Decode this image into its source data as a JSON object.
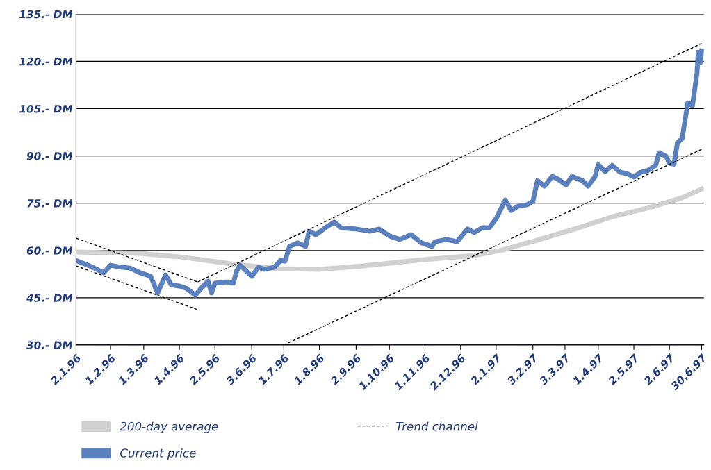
{
  "chart_data": {
    "type": "line",
    "xlim": [
      "1996-01-02",
      "1997-07-02"
    ],
    "ylim": [
      30,
      135
    ],
    "xticks": [
      {
        "value": "1996-01-02",
        "label": "2.1.96"
      },
      {
        "value": "1996-02-01",
        "label": "1.2.96"
      },
      {
        "value": "1996-03-01",
        "label": "1.3.96"
      },
      {
        "value": "1996-04-01",
        "label": "1.4.96"
      },
      {
        "value": "1996-05-02",
        "label": "2.5.96"
      },
      {
        "value": "1996-06-03",
        "label": "3.6.96"
      },
      {
        "value": "1996-07-01",
        "label": "1.7.96"
      },
      {
        "value": "1996-08-01",
        "label": "1.8.96"
      },
      {
        "value": "1996-09-02",
        "label": "2.9.96"
      },
      {
        "value": "1996-10-01",
        "label": "1.10.96"
      },
      {
        "value": "1996-11-01",
        "label": "1.11.96"
      },
      {
        "value": "1996-12-02",
        "label": "2.12.96"
      },
      {
        "value": "1997-01-02",
        "label": "2.1.97"
      },
      {
        "value": "1997-02-03",
        "label": "3.2.97"
      },
      {
        "value": "1997-03-03",
        "label": "3.3.97"
      },
      {
        "value": "1997-04-01",
        "label": "1.4.97"
      },
      {
        "value": "1997-05-02",
        "label": "2.5.97"
      },
      {
        "value": "1997-06-02",
        "label": "2.6.97"
      },
      {
        "value": "1997-06-30",
        "label": "30.6.97"
      }
    ],
    "yticks": [
      {
        "value": 30,
        "label": "30.- DM"
      },
      {
        "value": 45,
        "label": "45.- DM"
      },
      {
        "value": 60,
        "label": "60.- DM"
      },
      {
        "value": 75,
        "label": "75.- DM"
      },
      {
        "value": 90,
        "label": "90.- DM"
      },
      {
        "value": 105,
        "label": "105.- DM"
      },
      {
        "value": 120,
        "label": "120.- DM"
      },
      {
        "value": 135,
        "label": "135.- DM"
      }
    ],
    "grid": "y",
    "legend": "bottom",
    "marker": "none",
    "series": [
      {
        "name": "200-day average",
        "color": "#d0d0d0",
        "line_style": "solid",
        "x": [
          "1996-01-02",
          "1996-02-24",
          "1996-04-01",
          "1996-05-15",
          "1996-06-25",
          "1996-08-01",
          "1996-09-08",
          "1996-10-26",
          "1996-12-14",
          "1997-01-08",
          "1997-02-09",
          "1997-03-15",
          "1997-04-13",
          "1997-05-14",
          "1997-06-13",
          "1997-06-30"
        ],
        "values": [
          59.5,
          59.1,
          58,
          55.8,
          54.2,
          54,
          55.1,
          56.9,
          58.4,
          60.2,
          63.5,
          67.2,
          70.7,
          73.4,
          76.7,
          79.5
        ]
      },
      {
        "name": "Current price",
        "color": "#5b80be",
        "line_style": "solid",
        "x": [
          "1996-01-02",
          "1996-01-14",
          "1996-01-26",
          "1996-02-01",
          "1996-02-10",
          "1996-02-18",
          "1996-02-27",
          "1996-03-07",
          "1996-03-13",
          "1996-03-20",
          "1996-03-25",
          "1996-04-01",
          "1996-04-07",
          "1996-04-15",
          "1996-04-20",
          "1996-04-26",
          "1996-04-29",
          "1996-05-02",
          "1996-05-12",
          "1996-05-18",
          "1996-05-21",
          "1996-05-24",
          "1996-06-03",
          "1996-06-09",
          "1996-06-14",
          "1996-06-23",
          "1996-06-28",
          "1996-07-02",
          "1996-07-06",
          "1996-07-13",
          "1996-07-20",
          "1996-07-23",
          "1996-07-29",
          "1996-08-07",
          "1996-08-14",
          "1996-08-20",
          "1996-09-02",
          "1996-09-14",
          "1996-09-22",
          "1996-10-01",
          "1996-10-10",
          "1996-10-20",
          "1996-10-29",
          "1996-11-07",
          "1996-11-10",
          "1996-11-20",
          "1996-11-29",
          "1996-12-08",
          "1996-12-14",
          "1996-12-21",
          "1996-12-27",
          "1997-01-02",
          "1997-01-10",
          "1997-01-15",
          "1997-01-21",
          "1997-01-29",
          "1997-02-03",
          "1997-02-07",
          "1997-02-13",
          "1997-02-20",
          "1997-02-25",
          "1997-03-04",
          "1997-03-09",
          "1997-03-18",
          "1997-03-23",
          "1997-03-29",
          "1997-04-01",
          "1997-04-07",
          "1997-04-13",
          "1997-04-20",
          "1997-04-26",
          "1997-05-02",
          "1997-05-08",
          "1997-05-14",
          "1997-05-21",
          "1997-05-24",
          "1997-05-30",
          "1997-06-02",
          "1997-06-06",
          "1997-06-09",
          "1997-06-13",
          "1997-06-18",
          "1997-06-22",
          "1997-06-26",
          "1997-06-27",
          "1997-06-29",
          "1997-06-30"
        ],
        "values": [
          56.8,
          55.1,
          52.9,
          55.3,
          54.7,
          54.4,
          52.9,
          51.8,
          46.5,
          52.2,
          49.1,
          48.7,
          48,
          45.8,
          48,
          50.2,
          46.5,
          49.6,
          50,
          49.6,
          53.6,
          55.3,
          51.8,
          54.7,
          54,
          54.7,
          56.8,
          56.6,
          61.3,
          62.4,
          61.3,
          66.1,
          65,
          67.4,
          69,
          67.2,
          66.8,
          66.1,
          66.8,
          64.6,
          63.5,
          65,
          62.4,
          61.3,
          62.8,
          63.5,
          62.8,
          66.8,
          65.7,
          67.2,
          67.2,
          70.1,
          76,
          72.7,
          74,
          74.5,
          75.6,
          82.2,
          80.4,
          83.5,
          82.6,
          80.8,
          83.5,
          82.2,
          80.4,
          83.3,
          87.2,
          85,
          87,
          84.8,
          84.4,
          83.3,
          84.8,
          85.3,
          87,
          91,
          89.9,
          87.7,
          87.4,
          94.3,
          95.4,
          106.8,
          105.9,
          116.3,
          122.9,
          119.6,
          123.3
        ]
      },
      {
        "name": "Trend channel",
        "color": "#000000",
        "line_style": "dashed",
        "x": [
          "1996-01-02",
          "1996-04-17"
        ],
        "values": [
          63.9,
          50
        ]
      },
      {
        "color": "#000000",
        "line_style": "dashed",
        "x": [
          "1996-01-02",
          "1996-04-17"
        ],
        "values": [
          55.1,
          41.2
        ]
      },
      {
        "color": "#000000",
        "line_style": "dashed",
        "x": [
          "1996-04-17",
          "1997-06-30"
        ],
        "values": [
          50,
          125.7
        ]
      },
      {
        "color": "#000000",
        "line_style": "dashed",
        "x": [
          "1996-07-01",
          "1997-06-30"
        ],
        "values": [
          30,
          92.1
        ]
      }
    ]
  }
}
